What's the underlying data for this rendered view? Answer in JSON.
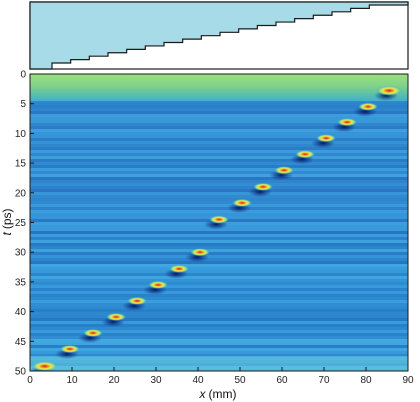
{
  "chart_data": [
    {
      "type": "area",
      "title": "",
      "description_hidden": false,
      "step_profile": {
        "x_range": [
          0,
          90
        ],
        "steps": 18,
        "fill_color": "#a8dbe8",
        "outline_color": "#1a1a1a"
      }
    },
    {
      "type": "heatmap",
      "title": "",
      "xlabel_var": "x",
      "xlabel_unit": "(mm)",
      "ylabel_var": "t",
      "ylabel_unit": "(ps)",
      "xlim": [
        0,
        90
      ],
      "ylim": [
        0,
        50
      ],
      "y_inverted": true,
      "x_ticks": [
        "0",
        "10",
        "20",
        "30",
        "40",
        "50",
        "60",
        "70",
        "80",
        "90"
      ],
      "y_ticks": [
        "0",
        "5",
        "10",
        "15",
        "20",
        "25",
        "30",
        "35",
        "40",
        "45",
        "50"
      ],
      "colormap": [
        "#0a2a8a",
        "#1f5fc4",
        "#3aa0e0",
        "#66d0e0",
        "#9be07a",
        "#f2e64a",
        "#f08a2a",
        "#d61e1e"
      ],
      "background_color": "#2a78c8",
      "bright_band_top": {
        "t_from": 0,
        "t_to": 4.5,
        "color": "#7fd28a"
      },
      "pulses": [
        {
          "x": 3.5,
          "t": 49.2
        },
        {
          "x": 9.5,
          "t": 46.3
        },
        {
          "x": 15.0,
          "t": 43.6
        },
        {
          "x": 20.5,
          "t": 40.9
        },
        {
          "x": 25.5,
          "t": 38.2
        },
        {
          "x": 30.5,
          "t": 35.5
        },
        {
          "x": 35.5,
          "t": 32.8
        },
        {
          "x": 40.5,
          "t": 30.0
        },
        {
          "x": 45.0,
          "t": 24.5
        },
        {
          "x": 50.5,
          "t": 21.7
        },
        {
          "x": 55.5,
          "t": 19.0
        },
        {
          "x": 60.5,
          "t": 16.2
        },
        {
          "x": 65.5,
          "t": 13.5
        },
        {
          "x": 70.5,
          "t": 10.8
        },
        {
          "x": 75.5,
          "t": 8.1
        },
        {
          "x": 80.5,
          "t": 5.5
        },
        {
          "x": 85.5,
          "t": 2.8
        }
      ]
    }
  ]
}
